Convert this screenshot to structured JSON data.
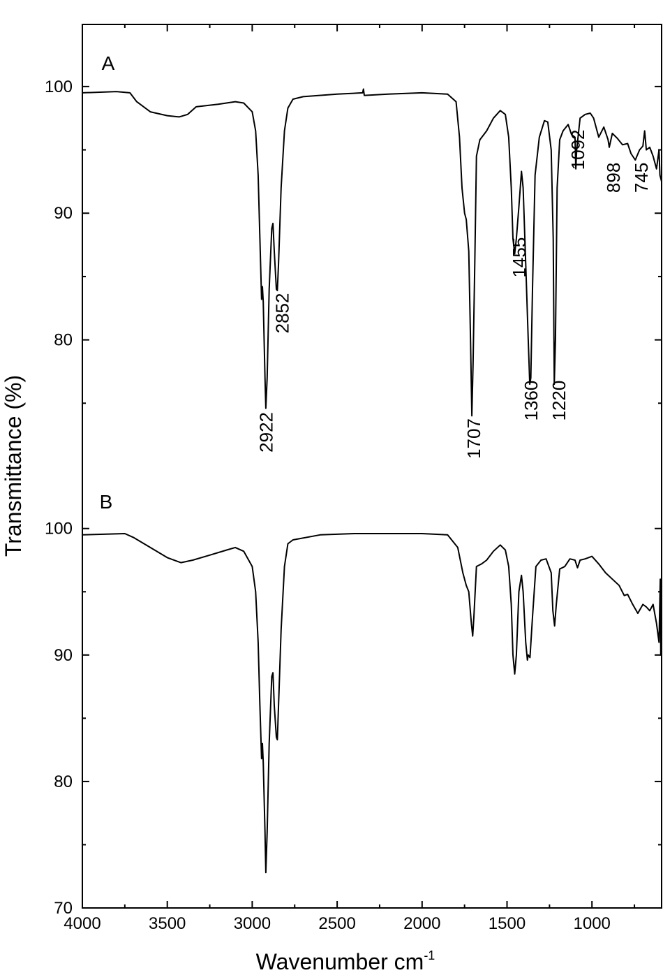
{
  "chart_data": [
    {
      "type": "line",
      "panel_label": "A",
      "ylabel": "Transmittance (%)",
      "xlim": [
        4000,
        590
      ],
      "ylim": [
        70,
        104.9
      ],
      "yticks": [
        80,
        90,
        100
      ],
      "yticks_minor": [
        75,
        85,
        95
      ],
      "color": "#000000",
      "x": [
        4000,
        3800,
        3720,
        3680,
        3600,
        3500,
        3430,
        3380,
        3330,
        3200,
        3100,
        3050,
        3000,
        2980,
        2965,
        2955,
        2945,
        2940,
        2935,
        2925,
        2920,
        2912,
        2900,
        2885,
        2878,
        2870,
        2858,
        2852,
        2845,
        2830,
        2810,
        2790,
        2760,
        2700,
        2500,
        2350,
        2345,
        2340,
        2200,
        2000,
        1850,
        1800,
        1780,
        1765,
        1750,
        1740,
        1725,
        1715,
        1707,
        1700,
        1690,
        1680,
        1660,
        1620,
        1580,
        1540,
        1510,
        1490,
        1475,
        1465,
        1455,
        1445,
        1430,
        1415,
        1405,
        1390,
        1375,
        1366,
        1360,
        1350,
        1335,
        1310,
        1280,
        1260,
        1240,
        1228,
        1222,
        1215,
        1205,
        1190,
        1170,
        1140,
        1120,
        1100,
        1095,
        1090,
        1070,
        1040,
        1010,
        990,
        960,
        930,
        905,
        898,
        880,
        850,
        820,
        790,
        770,
        745,
        720,
        700,
        690,
        680,
        660,
        640,
        620,
        605,
        600,
        590
      ],
      "values": [
        99.5,
        99.6,
        99.5,
        98.8,
        98.0,
        97.7,
        97.6,
        97.8,
        98.4,
        98.6,
        98.8,
        98.7,
        98.0,
        96.5,
        93,
        88,
        83.2,
        84.2,
        83,
        77,
        74.6,
        77,
        84,
        88.8,
        89.2,
        87,
        84,
        83.9,
        86,
        92,
        96.5,
        98.3,
        99.0,
        99.2,
        99.4,
        99.5,
        99.8,
        99.3,
        99.4,
        99.5,
        99.4,
        98.8,
        96,
        92,
        90,
        89.5,
        87,
        80,
        74.0,
        78,
        86,
        94.5,
        95.8,
        96.5,
        97.5,
        98.1,
        97.8,
        96,
        92,
        88,
        86.8,
        88,
        90.5,
        93.3,
        92,
        86,
        80,
        76.5,
        77,
        84,
        93,
        96,
        97.3,
        97.2,
        95,
        88,
        76.5,
        80,
        92,
        95.8,
        96.5,
        97,
        96.2,
        96,
        93.5,
        95,
        97.5,
        97.8,
        97.9,
        97.5,
        96,
        96.8,
        95.8,
        95.2,
        96.3,
        95.9,
        95.4,
        95.5,
        94.7,
        94.2,
        95,
        95.3,
        96.5,
        95,
        95.2,
        94.5,
        93.5,
        95,
        93,
        92.5
      ],
      "annotations": [
        {
          "text": "2922",
          "x": 2917,
          "y": 74.3
        },
        {
          "text": "2852",
          "x": 2823,
          "y": 83.7
        },
        {
          "text": "1707",
          "x": 1695,
          "y": 73.8
        },
        {
          "text": "1455",
          "x": 1428,
          "y": 88.1
        },
        {
          "text": "1360",
          "x": 1358,
          "y": 76.8
        },
        {
          "text": "1220",
          "x": 1194,
          "y": 76.8
        },
        {
          "text": "1092",
          "x": 1084,
          "y": 96.6
        },
        {
          "text": "898",
          "x": 874,
          "y": 94.0
        },
        {
          "text": "745",
          "x": 710,
          "y": 94.0
        }
      ]
    },
    {
      "type": "line",
      "panel_label": "B",
      "xlabel": "Wavenumber cm",
      "xlabel_sup": "-1",
      "xlim": [
        4000,
        590
      ],
      "xticks": [
        4000,
        3500,
        3000,
        2500,
        2000,
        1500,
        1000
      ],
      "xticks_minor": [
        3750,
        3250,
        2750,
        2250,
        1750,
        1250,
        750
      ],
      "ylim": [
        70,
        104.9
      ],
      "yticks": [
        70,
        80,
        90,
        100
      ],
      "yticks_minor": [
        75,
        85,
        95
      ],
      "color": "#000000",
      "x": [
        4000,
        3750,
        3700,
        3600,
        3500,
        3420,
        3350,
        3250,
        3150,
        3100,
        3050,
        3000,
        2980,
        2965,
        2955,
        2945,
        2940,
        2935,
        2925,
        2920,
        2912,
        2900,
        2885,
        2878,
        2870,
        2858,
        2852,
        2845,
        2830,
        2810,
        2790,
        2760,
        2600,
        2400,
        2000,
        1850,
        1790,
        1760,
        1740,
        1725,
        1710,
        1702,
        1695,
        1680,
        1650,
        1620,
        1580,
        1540,
        1510,
        1490,
        1475,
        1465,
        1455,
        1445,
        1430,
        1415,
        1405,
        1390,
        1380,
        1375,
        1365,
        1350,
        1330,
        1300,
        1270,
        1240,
        1230,
        1220,
        1210,
        1190,
        1160,
        1130,
        1100,
        1085,
        1070,
        1040,
        1000,
        960,
        920,
        880,
        840,
        810,
        790,
        760,
        730,
        700,
        680,
        660,
        640,
        620,
        605,
        598,
        595,
        590
      ],
      "values": [
        99.5,
        99.6,
        99.3,
        98.5,
        97.7,
        97.3,
        97.5,
        97.9,
        98.3,
        98.5,
        98.2,
        97,
        95,
        91,
        86,
        81.8,
        83,
        81.5,
        76,
        72.8,
        76,
        83,
        88.3,
        88.6,
        86,
        83.5,
        83.3,
        86,
        92,
        97,
        98.8,
        99.1,
        99.5,
        99.6,
        99.6,
        99.5,
        98.5,
        96.5,
        95.5,
        95,
        92.5,
        91.5,
        93,
        97,
        97.2,
        97.5,
        98.2,
        98.7,
        98.3,
        97,
        94,
        90,
        88.5,
        90,
        95,
        96.3,
        95,
        91,
        89.6,
        90,
        89.8,
        93,
        97,
        97.5,
        97.6,
        96.5,
        93.5,
        92.3,
        94,
        96.8,
        97,
        97.6,
        97.5,
        96.9,
        97.5,
        97.6,
        97.8,
        97.2,
        96.5,
        96,
        95.5,
        94.7,
        94.8,
        94,
        93.3,
        94,
        93.8,
        93.5,
        94,
        92.5,
        91,
        96,
        90,
        92
      ]
    }
  ]
}
